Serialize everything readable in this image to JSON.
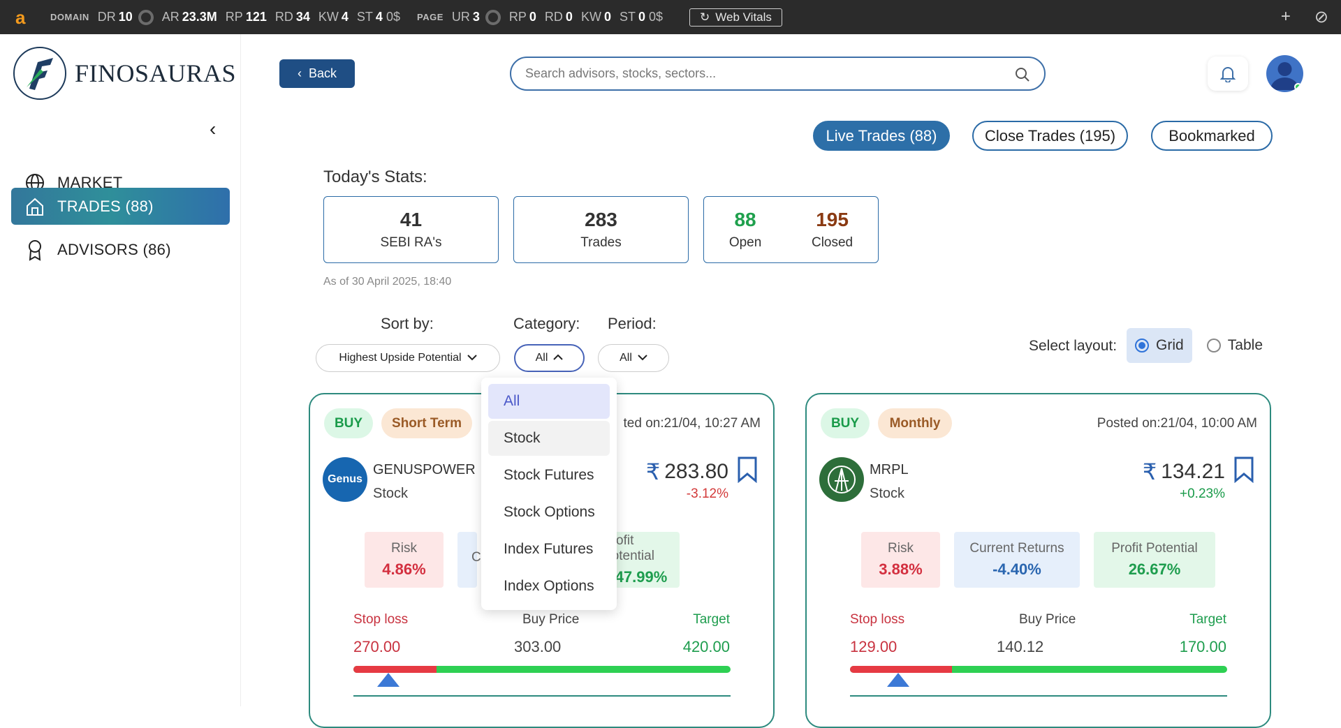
{
  "extension_bar": {
    "domain_tag": "DOMAIN",
    "domain_metrics": [
      {
        "k": "DR",
        "v": "10"
      },
      {
        "k": "AR",
        "v": "23.3M"
      },
      {
        "k": "RP",
        "v": "121"
      },
      {
        "k": "RD",
        "v": "34"
      },
      {
        "k": "KW",
        "v": "4"
      },
      {
        "k": "ST",
        "v": "4",
        "suffix": "0$"
      }
    ],
    "page_tag": "PAGE",
    "page_metrics": [
      {
        "k": "UR",
        "v": "3"
      },
      {
        "k": "RP",
        "v": "0"
      },
      {
        "k": "RD",
        "v": "0"
      },
      {
        "k": "KW",
        "v": "0"
      },
      {
        "k": "ST",
        "v": "0",
        "suffix": "0$"
      }
    ],
    "web_vitals_label": "Web Vitals"
  },
  "brand": {
    "name": "FINOSAURAS"
  },
  "sidebar": {
    "items": [
      {
        "label": "MARKET",
        "active": false
      },
      {
        "label": "TRADES (88)",
        "active": true
      },
      {
        "label": "ADVISORS (86)",
        "active": false
      }
    ]
  },
  "header": {
    "back_label": "Back",
    "search_placeholder": "Search advisors, stocks, sectors..."
  },
  "tabs": [
    {
      "label": "Live Trades (88)",
      "active": true
    },
    {
      "label": "Close Trades (195)",
      "active": false
    },
    {
      "label": "Bookmarked",
      "active": false
    }
  ],
  "stats": {
    "title": "Today's Stats:",
    "sebi": {
      "value": "41",
      "label": "SEBI RA's"
    },
    "trades": {
      "value": "283",
      "label": "Trades"
    },
    "open": {
      "value": "88",
      "label": "Open"
    },
    "closed": {
      "value": "195",
      "label": "Closed"
    },
    "as_of": "As of 30 April 2025, 18:40"
  },
  "filters": {
    "sort_label": "Sort by:",
    "sort_value": "Highest Upside Potential",
    "category_label": "Category:",
    "category_value": "All",
    "period_label": "Period:",
    "period_value": "All",
    "layout_label": "Select layout:",
    "layout_options": [
      {
        "label": "Grid",
        "selected": true
      },
      {
        "label": "Table",
        "selected": false
      }
    ]
  },
  "category_dropdown": {
    "options": [
      "All",
      "Stock",
      "Stock Futures",
      "Stock Options",
      "Index Futures",
      "Index Options"
    ],
    "selected": "All",
    "hovered": "Stock"
  },
  "cards": [
    {
      "side": "BUY",
      "term": "Short Term",
      "posted": "ted on:21/04, 10:27 AM",
      "logo_text": "Genus",
      "name": "GENUSPOWER",
      "type": "Stock",
      "price": "283.80",
      "change": "-3.12%",
      "risk_label": "Risk",
      "risk_value": "4.86%",
      "returns_label": "C",
      "returns_value": "",
      "profit_label": "Profit Potential",
      "profit_value": "47.99%",
      "stop_label": "Stop loss",
      "stop_value": "270.00",
      "buy_label": "Buy Price",
      "buy_value": "303.00",
      "target_label": "Target",
      "target_value": "420.00",
      "red_fraction": 0.22,
      "marker_fraction": 0.093
    },
    {
      "side": "BUY",
      "term": "Monthly",
      "posted": "Posted on:21/04, 10:00 AM",
      "logo_text": "MRPL",
      "name": "MRPL",
      "type": "Stock",
      "price": "134.21",
      "change": "+0.23%",
      "risk_label": "Risk",
      "risk_value": "3.88%",
      "returns_label": "Current Returns",
      "returns_value": "-4.40%",
      "profit_label": "Profit Potential",
      "profit_value": "26.67%",
      "stop_label": "Stop loss",
      "stop_value": "129.00",
      "buy_label": "Buy Price",
      "buy_value": "140.12",
      "target_label": "Target",
      "target_value": "170.00",
      "red_fraction": 0.27,
      "marker_fraction": 0.127
    }
  ],
  "colors": {
    "primary": "#2d6fa8",
    "accent_green": "#1a9b4a",
    "accent_red": "#d33a3a",
    "card_border": "#2d8a7e"
  }
}
